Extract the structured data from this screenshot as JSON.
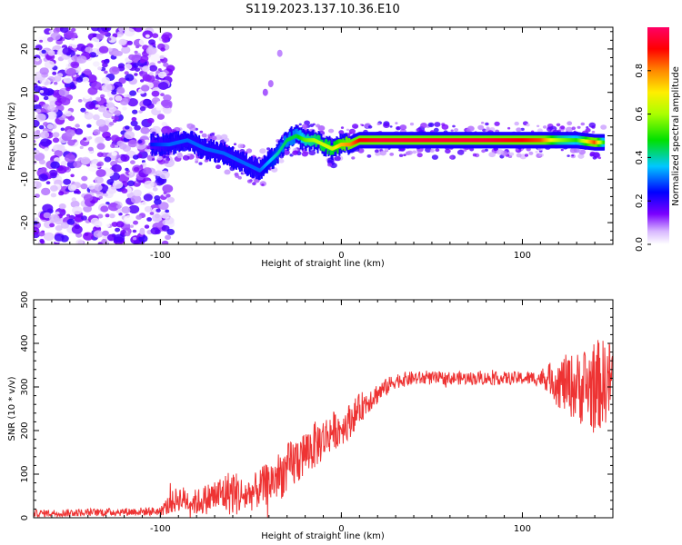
{
  "title": "S119.2023.137.10.36.E10",
  "chart_data": [
    {
      "type": "heatmap",
      "xlabel": "Height of straight line (km)",
      "ylabel": "Frequency (Hz)",
      "xlim": [
        -170,
        150
      ],
      "ylim": [
        -25,
        25
      ],
      "xticks": [
        -100,
        0,
        100
      ],
      "yticks": [
        -20,
        -10,
        0,
        10,
        20
      ],
      "colorbar": {
        "label": "Normalized spectral amplitude",
        "range": [
          0,
          1
        ],
        "ticks": [
          "0.0",
          "0.2",
          "0.4",
          "0.6",
          "0.8"
        ],
        "colormap": "white-violet-blue-cyan-green-yellow-orange-red-magenta"
      },
      "ridge": {
        "x": [
          -105,
          -95,
          -85,
          -75,
          -65,
          -55,
          -45,
          -40,
          -35,
          -30,
          -25,
          -20,
          -15,
          -10,
          -5,
          0,
          5,
          10,
          20,
          40,
          60,
          80,
          100,
          110,
          120,
          130,
          140,
          145
        ],
        "freq": [
          -2,
          -2,
          -1,
          -3,
          -4,
          -6,
          -8,
          -6,
          -4,
          -1,
          0,
          -1,
          -1,
          -2,
          -3,
          -2,
          -2,
          -1,
          -1,
          -1,
          -1,
          -1,
          -1,
          -1,
          -1,
          -1,
          -1.5,
          -1.5
        ],
        "amplitude": [
          0.25,
          0.3,
          0.3,
          0.3,
          0.3,
          0.3,
          0.3,
          0.35,
          0.4,
          0.45,
          0.45,
          0.55,
          0.6,
          0.65,
          0.65,
          0.75,
          0.8,
          0.9,
          0.95,
          0.95,
          0.95,
          0.95,
          0.9,
          0.85,
          0.6,
          0.5,
          0.85,
          0.5
        ]
      },
      "noise_region": {
        "x": [
          -170,
          -100
        ],
        "amplitude": [
          0,
          0.15
        ]
      }
    },
    {
      "type": "line",
      "xlabel": "Height of straight line (km)",
      "ylabel": "SNR (10 * v/v)",
      "xlim": [
        -170,
        150
      ],
      "ylim": [
        0,
        500
      ],
      "xticks": [
        -100,
        0,
        100
      ],
      "yticks": [
        0,
        100,
        200,
        300,
        400,
        500
      ],
      "color": "#ee3333",
      "envelope": {
        "x": [
          -170,
          -100,
          -95,
          -90,
          -80,
          -70,
          -60,
          -55,
          -50,
          -40,
          -30,
          -25,
          -20,
          -15,
          -10,
          -5,
          0,
          5,
          10,
          15,
          20,
          25,
          30,
          40,
          60,
          80,
          100,
          110,
          115,
          120,
          130,
          140,
          150
        ],
        "mean": [
          10,
          15,
          30,
          45,
          35,
          50,
          60,
          50,
          55,
          80,
          110,
          130,
          150,
          165,
          180,
          200,
          205,
          225,
          250,
          270,
          285,
          300,
          315,
          320,
          320,
          320,
          320,
          320,
          320,
          310,
          300,
          300,
          320
        ],
        "spread": [
          8,
          10,
          25,
          30,
          30,
          40,
          55,
          45,
          40,
          50,
          60,
          60,
          55,
          55,
          50,
          45,
          40,
          40,
          35,
          30,
          25,
          20,
          18,
          16,
          15,
          15,
          15,
          18,
          35,
          60,
          80,
          110,
          90
        ]
      }
    }
  ]
}
